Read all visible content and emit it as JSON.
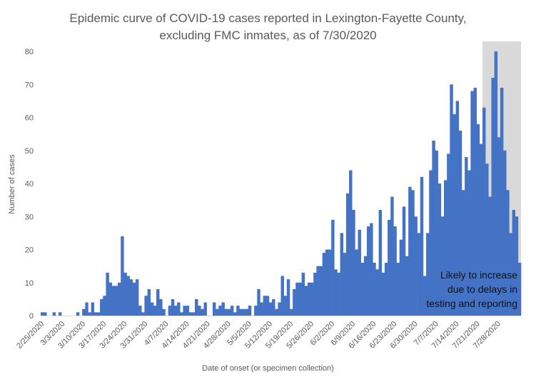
{
  "chart_data": {
    "type": "bar",
    "title": "Epidemic curve of COVID-19 cases reported in Lexington-Fayette County, excluding FMC inmates, as of 7/30/2020",
    "title_lines": [
      "Epidemic curve of COVID-19 cases reported in Lexington-Fayette County,",
      "excluding FMC inmates, as of 7/30/2020"
    ],
    "xlabel": "Date of onset (or specimen collection)",
    "ylabel": "Number of cases",
    "ylim": [
      0,
      80
    ],
    "yticks": [
      0,
      10,
      20,
      30,
      40,
      50,
      60,
      70,
      80
    ],
    "start_date": "2/25/2020",
    "x_tick_labels": [
      "2/25/2020",
      "3/3/2020",
      "3/10/2020",
      "3/17/2020",
      "3/24/2020",
      "3/31/2020",
      "4/7/2020",
      "4/14/2020",
      "4/21/2020",
      "4/28/2020",
      "5/5/2020",
      "5/12/2020",
      "5/19/2020",
      "5/26/2020",
      "6/2/2020",
      "6/9/2020",
      "6/16/2020",
      "6/23/2020",
      "6/30/2020",
      "7/7/2020",
      "7/14/2020",
      "7/21/2020",
      "7/28/2020"
    ],
    "values": [
      1,
      1,
      0,
      0,
      1,
      0,
      1,
      0,
      0,
      0,
      0,
      0,
      1,
      0,
      2,
      4,
      1,
      4,
      1,
      1,
      5,
      6,
      13,
      10,
      9,
      9,
      10,
      24,
      13,
      12,
      11,
      10,
      11,
      3,
      1,
      6,
      8,
      4,
      3,
      8,
      5,
      2,
      0,
      3,
      5,
      3,
      4,
      1,
      3,
      3,
      1,
      1,
      5,
      3,
      2,
      4,
      0,
      0,
      4,
      2,
      3,
      4,
      2,
      2,
      3,
      1,
      3,
      2,
      2,
      2,
      3,
      0,
      3,
      8,
      4,
      6,
      6,
      4,
      5,
      2,
      4,
      12,
      6,
      11,
      2,
      8,
      10,
      10,
      13,
      9,
      10,
      10,
      13,
      15,
      15,
      19,
      20,
      20,
      29,
      14,
      13,
      25,
      19,
      37,
      44,
      32,
      20,
      26,
      16,
      18,
      27,
      28,
      16,
      14,
      32,
      13,
      16,
      29,
      36,
      27,
      16,
      23,
      33,
      18,
      39,
      38,
      30,
      25,
      42,
      12,
      25,
      44,
      53,
      50,
      40,
      30,
      41,
      49,
      70,
      61,
      65,
      56,
      38,
      48,
      44,
      68,
      69,
      58,
      52,
      63,
      46,
      36,
      72,
      80,
      54,
      69,
      50,
      38,
      25,
      32,
      30,
      16
    ],
    "annotation_region": {
      "start_index": 149,
      "end_index": 162,
      "color": "#d9d9d9"
    },
    "annotation_text": [
      "Likely to increase",
      "due to delays in",
      "testing and reporting"
    ],
    "grid": false,
    "colors": {
      "bar": "#4472c4",
      "text": "#595959",
      "axis": "#d9d9d9",
      "shade": "#d9d9d9"
    }
  }
}
